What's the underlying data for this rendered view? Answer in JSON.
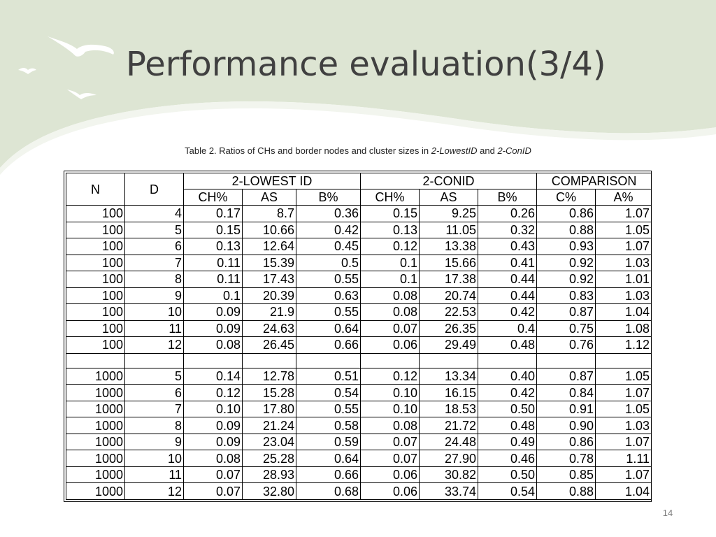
{
  "slide": {
    "title": "Performance evaluation(3/4)",
    "caption_prefix": "Table 2. Ratios of CHs and border nodes and cluster sizes in ",
    "caption_alg1": "2-LowestID",
    "caption_mid": " and ",
    "caption_alg2": "2-ConID",
    "page_number": "14"
  },
  "colors": {
    "background_wave": "#d9e3d0",
    "title": "#404040"
  },
  "table": {
    "header_top": [
      "N",
      "D",
      "2-LOWEST ID",
      "2-CONID",
      "COMPARISON"
    ],
    "header_sub": [
      "CH%",
      "AS",
      "B%",
      "CH%",
      "AS",
      "B%",
      "C%",
      "A%"
    ],
    "group1": [
      [
        "100",
        "4",
        "0.17",
        "8.7",
        "0.36",
        "0.15",
        "9.25",
        "0.26",
        "0.86",
        "1.07"
      ],
      [
        "100",
        "5",
        "0.15",
        "10.66",
        "0.42",
        "0.13",
        "11.05",
        "0.32",
        "0.88",
        "1.05"
      ],
      [
        "100",
        "6",
        "0.13",
        "12.64",
        "0.45",
        "0.12",
        "13.38",
        "0.43",
        "0.93",
        "1.07"
      ],
      [
        "100",
        "7",
        "0.11",
        "15.39",
        "0.5",
        "0.1",
        "15.66",
        "0.41",
        "0.92",
        "1.03"
      ],
      [
        "100",
        "8",
        "0.11",
        "17.43",
        "0.55",
        "0.1",
        "17.38",
        "0.44",
        "0.92",
        "1.01"
      ],
      [
        "100",
        "9",
        "0.1",
        "20.39",
        "0.63",
        "0.08",
        "20.74",
        "0.44",
        "0.83",
        "1.03"
      ],
      [
        "100",
        "10",
        "0.09",
        "21.9",
        "0.55",
        "0.08",
        "22.53",
        "0.42",
        "0.87",
        "1.04"
      ],
      [
        "100",
        "11",
        "0.09",
        "24.63",
        "0.64",
        "0.07",
        "26.35",
        "0.4",
        "0.75",
        "1.08"
      ],
      [
        "100",
        "12",
        "0.08",
        "26.45",
        "0.66",
        "0.06",
        "29.49",
        "0.48",
        "0.76",
        "1.12"
      ]
    ],
    "group2": [
      [
        "1000",
        "5",
        "0.14",
        "12.78",
        "0.51",
        "0.12",
        "13.34",
        "0.40",
        "0.87",
        "1.05"
      ],
      [
        "1000",
        "6",
        "0.12",
        "15.28",
        "0.54",
        "0.10",
        "16.15",
        "0.42",
        "0.84",
        "1.07"
      ],
      [
        "1000",
        "7",
        "0.10",
        "17.80",
        "0.55",
        "0.10",
        "18.53",
        "0.50",
        "0.91",
        "1.05"
      ],
      [
        "1000",
        "8",
        "0.09",
        "21.24",
        "0.58",
        "0.08",
        "21.72",
        "0.48",
        "0.90",
        "1.03"
      ],
      [
        "1000",
        "9",
        "0.09",
        "23.04",
        "0.59",
        "0.07",
        "24.48",
        "0.49",
        "0.86",
        "1.07"
      ],
      [
        "1000",
        "10",
        "0.08",
        "25.28",
        "0.64",
        "0.07",
        "27.90",
        "0.46",
        "0.78",
        "1.11"
      ],
      [
        "1000",
        "11",
        "0.07",
        "28.93",
        "0.66",
        "0.06",
        "30.82",
        "0.50",
        "0.85",
        "1.07"
      ],
      [
        "1000",
        "12",
        "0.07",
        "32.80",
        "0.68",
        "0.06",
        "33.74",
        "0.54",
        "0.88",
        "1.04"
      ]
    ]
  }
}
